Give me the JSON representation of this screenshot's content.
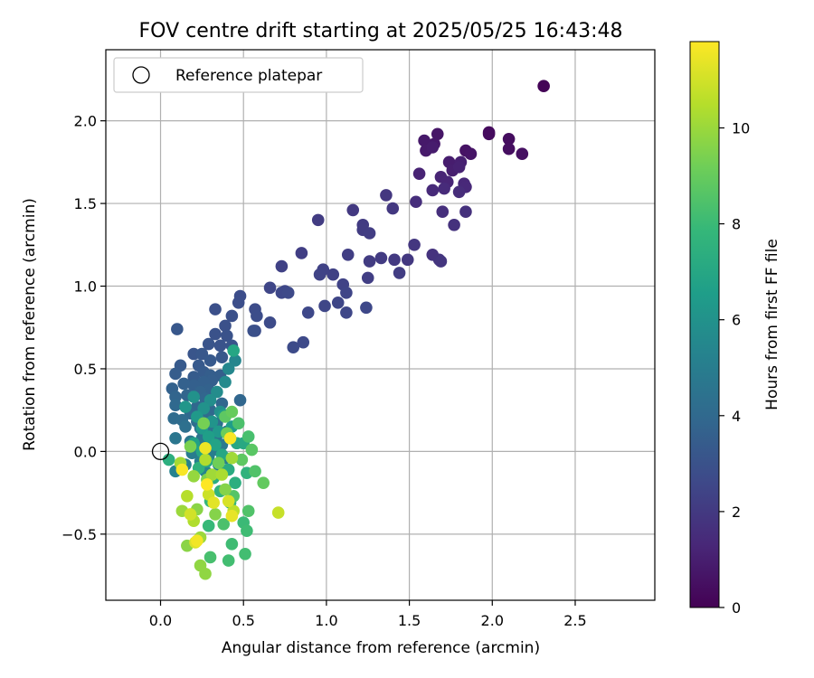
{
  "chart_data": {
    "type": "scatter",
    "title": "FOV centre drift starting at 2025/05/25 16:43:48",
    "xlabel": "Angular distance from reference (arcmin)",
    "ylabel": "Rotation from reference (arcmin)",
    "xlim": [
      -0.33,
      2.98
    ],
    "ylim": [
      -0.9,
      2.43
    ],
    "xticks": [
      0.0,
      0.5,
      1.0,
      1.5,
      2.0,
      2.5
    ],
    "xtick_labels": [
      "0.0",
      "0.5",
      "1.0",
      "1.5",
      "2.0",
      "2.5"
    ],
    "yticks": [
      -0.5,
      0.0,
      0.5,
      1.0,
      1.5,
      2.0
    ],
    "ytick_labels": [
      "−0.5",
      "0.0",
      "0.5",
      "1.0",
      "1.5",
      "2.0"
    ],
    "grid": true,
    "legend": {
      "position": "upper-left",
      "entries": [
        "Reference platepar"
      ]
    },
    "reference_point": {
      "x": 0.0,
      "y": 0.0
    },
    "colorbar": {
      "label": "Hours from first FF file",
      "range": [
        0,
        11.8
      ],
      "ticks": [
        0,
        2,
        4,
        6,
        8,
        10
      ],
      "tick_labels": [
        "0",
        "2",
        "4",
        "6",
        "8",
        "10"
      ],
      "colormap": "viridis",
      "colors": [
        "#440154",
        "#482878",
        "#3e4989",
        "#31688e",
        "#26828e",
        "#1f9e89",
        "#35b779",
        "#6ece58",
        "#b5de2b",
        "#fde725"
      ]
    },
    "points": [
      [
        2.31,
        2.21,
        0.1
      ],
      [
        1.98,
        1.93,
        0.3
      ],
      [
        1.98,
        1.92,
        0.35
      ],
      [
        2.1,
        1.89,
        0.4
      ],
      [
        2.1,
        1.83,
        0.45
      ],
      [
        2.18,
        1.8,
        0.5
      ],
      [
        1.84,
        1.82,
        0.6
      ],
      [
        1.87,
        1.8,
        0.65
      ],
      [
        1.67,
        1.92,
        0.7
      ],
      [
        1.65,
        1.86,
        0.75
      ],
      [
        1.59,
        1.88,
        0.8
      ],
      [
        1.6,
        1.82,
        0.85
      ],
      [
        1.64,
        1.84,
        0.9
      ],
      [
        1.74,
        1.75,
        0.95
      ],
      [
        1.76,
        1.7,
        1.0
      ],
      [
        1.81,
        1.75,
        1.05
      ],
      [
        1.8,
        1.72,
        1.1
      ],
      [
        1.56,
        1.68,
        1.15
      ],
      [
        1.69,
        1.66,
        1.2
      ],
      [
        1.73,
        1.63,
        1.25
      ],
      [
        1.83,
        1.62,
        1.3
      ],
      [
        1.84,
        1.6,
        1.35
      ],
      [
        1.64,
        1.58,
        1.4
      ],
      [
        1.71,
        1.59,
        1.45
      ],
      [
        1.8,
        1.57,
        1.5
      ],
      [
        1.54,
        1.51,
        1.55
      ],
      [
        1.7,
        1.45,
        1.6
      ],
      [
        1.84,
        1.45,
        1.65
      ],
      [
        1.77,
        1.37,
        1.7
      ],
      [
        1.64,
        1.19,
        1.75
      ],
      [
        1.68,
        1.16,
        1.8
      ],
      [
        1.69,
        1.15,
        1.85
      ],
      [
        1.53,
        1.25,
        1.9
      ],
      [
        1.49,
        1.16,
        1.95
      ],
      [
        1.41,
        1.16,
        2.0
      ],
      [
        1.33,
        1.17,
        2.05
      ],
      [
        1.26,
        1.15,
        2.1
      ],
      [
        1.44,
        1.08,
        2.15
      ],
      [
        1.25,
        1.05,
        2.2
      ],
      [
        1.36,
        1.55,
        1.9
      ],
      [
        1.4,
        1.47,
        1.95
      ],
      [
        1.16,
        1.46,
        2.0
      ],
      [
        1.22,
        1.37,
        2.05
      ],
      [
        1.22,
        1.34,
        2.1
      ],
      [
        1.26,
        1.32,
        2.15
      ],
      [
        1.13,
        1.19,
        2.2
      ],
      [
        0.95,
        1.4,
        2.1
      ],
      [
        0.85,
        1.2,
        2.2
      ],
      [
        0.73,
        1.12,
        2.3
      ],
      [
        1.04,
        1.07,
        2.3
      ],
      [
        0.98,
        1.1,
        2.35
      ],
      [
        0.96,
        1.07,
        2.4
      ],
      [
        1.1,
        1.01,
        2.4
      ],
      [
        1.12,
        0.96,
        2.45
      ],
      [
        1.07,
        0.9,
        2.5
      ],
      [
        0.99,
        0.88,
        2.5
      ],
      [
        1.12,
        0.84,
        2.55
      ],
      [
        0.89,
        0.84,
        2.6
      ],
      [
        1.24,
        0.87,
        2.6
      ],
      [
        0.66,
        0.99,
        2.5
      ],
      [
        0.75,
        0.97,
        2.55
      ],
      [
        0.73,
        0.96,
        2.6
      ],
      [
        0.77,
        0.96,
        2.65
      ],
      [
        0.86,
        0.66,
        2.65
      ],
      [
        0.8,
        0.63,
        2.7
      ],
      [
        0.66,
        0.78,
        2.7
      ],
      [
        0.57,
        0.86,
        2.75
      ],
      [
        0.58,
        0.82,
        2.8
      ],
      [
        0.57,
        0.73,
        2.85
      ],
      [
        0.56,
        0.73,
        2.9
      ],
      [
        0.48,
        0.94,
        2.8
      ],
      [
        0.47,
        0.9,
        2.85
      ],
      [
        0.43,
        0.82,
        2.9
      ],
      [
        0.39,
        0.76,
        2.95
      ],
      [
        0.33,
        0.86,
        2.9
      ],
      [
        0.4,
        0.7,
        3.0
      ],
      [
        0.33,
        0.71,
        3.0
      ],
      [
        0.36,
        0.64,
        3.05
      ],
      [
        0.43,
        0.64,
        3.1
      ],
      [
        0.29,
        0.65,
        3.1
      ],
      [
        0.2,
        0.59,
        3.15
      ],
      [
        0.25,
        0.59,
        3.2
      ],
      [
        0.1,
        0.74,
        3.2
      ],
      [
        0.37,
        0.57,
        3.25
      ],
      [
        0.3,
        0.55,
        3.3
      ],
      [
        0.23,
        0.52,
        3.3
      ],
      [
        0.12,
        0.52,
        3.35
      ],
      [
        0.26,
        0.48,
        3.4
      ],
      [
        0.2,
        0.45,
        3.4
      ],
      [
        0.09,
        0.47,
        3.45
      ],
      [
        0.3,
        0.46,
        3.5
      ],
      [
        0.36,
        0.46,
        3.5
      ],
      [
        0.31,
        0.43,
        3.55
      ],
      [
        0.26,
        0.42,
        3.6
      ],
      [
        0.2,
        0.4,
        3.6
      ],
      [
        0.14,
        0.41,
        3.65
      ],
      [
        0.07,
        0.38,
        3.7
      ],
      [
        0.29,
        0.37,
        3.7
      ],
      [
        0.24,
        0.36,
        3.75
      ],
      [
        0.16,
        0.34,
        3.8
      ],
      [
        0.09,
        0.33,
        3.8
      ],
      [
        0.27,
        0.32,
        3.85
      ],
      [
        0.48,
        0.31,
        3.9
      ],
      [
        0.37,
        0.29,
        3.9
      ],
      [
        0.22,
        0.27,
        3.95
      ],
      [
        0.09,
        0.28,
        4.0
      ],
      [
        0.3,
        0.25,
        4.0
      ],
      [
        0.18,
        0.23,
        4.05
      ],
      [
        0.27,
        0.21,
        4.1
      ],
      [
        0.08,
        0.2,
        4.15
      ],
      [
        0.13,
        0.19,
        4.2
      ],
      [
        0.22,
        0.18,
        4.25
      ],
      [
        0.34,
        0.17,
        4.3
      ],
      [
        0.15,
        0.15,
        4.35
      ],
      [
        0.24,
        0.14,
        4.4
      ],
      [
        0.29,
        0.12,
        4.45
      ],
      [
        0.4,
        0.12,
        4.5
      ],
      [
        0.34,
        0.1,
        4.55
      ],
      [
        0.25,
        0.08,
        4.6
      ],
      [
        0.09,
        0.08,
        4.65
      ],
      [
        0.18,
        0.06,
        4.7
      ],
      [
        0.28,
        0.05,
        4.75
      ],
      [
        0.37,
        0.04,
        4.8
      ],
      [
        0.22,
        0.02,
        4.85
      ],
      [
        0.32,
        0.01,
        4.9
      ],
      [
        0.19,
        -0.01,
        4.95
      ],
      [
        0.29,
        -0.03,
        5.0
      ],
      [
        0.39,
        -0.04,
        5.05
      ],
      [
        0.24,
        -0.06,
        5.1
      ],
      [
        0.15,
        -0.08,
        5.15
      ],
      [
        0.35,
        -0.08,
        5.2
      ],
      [
        0.09,
        -0.12,
        5.25
      ],
      [
        0.27,
        -0.12,
        5.3
      ],
      [
        0.45,
        0.55,
        5.4
      ],
      [
        0.41,
        0.5,
        5.5
      ],
      [
        0.39,
        0.42,
        5.6
      ],
      [
        0.34,
        0.36,
        5.7
      ],
      [
        0.3,
        0.31,
        5.8
      ],
      [
        0.36,
        0.24,
        5.9
      ],
      [
        0.2,
        0.33,
        6.0
      ],
      [
        0.26,
        0.26,
        6.0
      ],
      [
        0.31,
        0.18,
        6.1
      ],
      [
        0.15,
        0.27,
        6.2
      ],
      [
        0.22,
        0.21,
        6.3
      ],
      [
        0.35,
        0.12,
        6.3
      ],
      [
        0.25,
        0.14,
        6.4
      ],
      [
        0.38,
        0.22,
        6.5
      ],
      [
        0.43,
        0.15,
        6.5
      ],
      [
        0.29,
        0.09,
        6.6
      ],
      [
        0.2,
        0.05,
        6.7
      ],
      [
        0.33,
        0.04,
        6.8
      ],
      [
        0.42,
        0.08,
        6.8
      ],
      [
        0.25,
        0.0,
        6.9
      ],
      [
        0.37,
        -0.02,
        7.0
      ],
      [
        0.46,
        0.05,
        7.0
      ],
      [
        0.44,
        0.61,
        7.0
      ],
      [
        0.5,
        0.05,
        7.1
      ],
      [
        0.28,
        -0.06,
        7.1
      ],
      [
        0.41,
        -0.11,
        7.2
      ],
      [
        0.32,
        -0.16,
        7.3
      ],
      [
        0.45,
        -0.19,
        7.4
      ],
      [
        0.05,
        -0.05,
        7.4
      ],
      [
        0.23,
        -0.1,
        7.5
      ],
      [
        0.36,
        -0.24,
        7.6
      ],
      [
        0.52,
        -0.13,
        7.6
      ],
      [
        0.42,
        -0.31,
        7.7
      ],
      [
        0.3,
        -0.3,
        7.8
      ],
      [
        0.29,
        -0.45,
        7.9
      ],
      [
        0.5,
        -0.43,
        8.0
      ],
      [
        0.52,
        -0.48,
        8.1
      ],
      [
        0.43,
        -0.56,
        8.1
      ],
      [
        0.41,
        -0.66,
        8.2
      ],
      [
        0.51,
        -0.62,
        8.2
      ],
      [
        0.3,
        -0.64,
        8.3
      ],
      [
        0.53,
        0.09,
        8.3
      ],
      [
        0.47,
        0.17,
        8.4
      ],
      [
        0.38,
        -0.44,
        8.4
      ],
      [
        0.57,
        -0.12,
        8.5
      ],
      [
        0.53,
        -0.36,
        8.5
      ],
      [
        0.44,
        -0.27,
        8.6
      ],
      [
        0.55,
        0.01,
        8.7
      ],
      [
        0.39,
        0.21,
        8.8
      ],
      [
        0.49,
        -0.05,
        8.8
      ],
      [
        0.62,
        -0.19,
        8.9
      ],
      [
        0.43,
        0.24,
        9.0
      ],
      [
        0.4,
        0.11,
        9.1
      ],
      [
        0.35,
        -0.07,
        9.2
      ],
      [
        0.26,
        0.17,
        9.3
      ],
      [
        0.18,
        0.03,
        9.4
      ],
      [
        0.28,
        -0.17,
        9.5
      ],
      [
        0.33,
        -0.38,
        9.6
      ],
      [
        0.39,
        -0.23,
        9.6
      ],
      [
        0.22,
        -0.35,
        9.7
      ],
      [
        0.16,
        -0.57,
        9.7
      ],
      [
        0.27,
        -0.74,
        9.8
      ],
      [
        0.24,
        -0.69,
        9.8
      ],
      [
        0.2,
        -0.15,
        9.9
      ],
      [
        0.13,
        -0.36,
        10.0
      ],
      [
        0.24,
        -0.52,
        10.0
      ],
      [
        0.31,
        -0.14,
        10.1
      ],
      [
        0.43,
        -0.04,
        10.1
      ],
      [
        0.12,
        -0.07,
        10.2
      ],
      [
        0.37,
        -0.14,
        10.3
      ],
      [
        0.27,
        -0.05,
        10.4
      ],
      [
        0.2,
        -0.42,
        10.4
      ],
      [
        0.16,
        -0.27,
        10.5
      ],
      [
        0.44,
        -0.36,
        10.6
      ],
      [
        0.71,
        -0.37,
        10.8
      ],
      [
        0.29,
        -0.26,
        10.9
      ],
      [
        0.18,
        -0.38,
        11.0
      ],
      [
        0.41,
        -0.3,
        11.1
      ],
      [
        0.21,
        -0.55,
        11.2
      ],
      [
        0.32,
        -0.31,
        11.3
      ],
      [
        0.43,
        -0.39,
        11.4
      ],
      [
        0.27,
        0.02,
        11.5
      ],
      [
        0.22,
        -0.54,
        11.6
      ],
      [
        0.13,
        -0.11,
        11.7
      ],
      [
        0.42,
        0.08,
        11.7
      ],
      [
        0.28,
        -0.2,
        11.8
      ]
    ]
  }
}
